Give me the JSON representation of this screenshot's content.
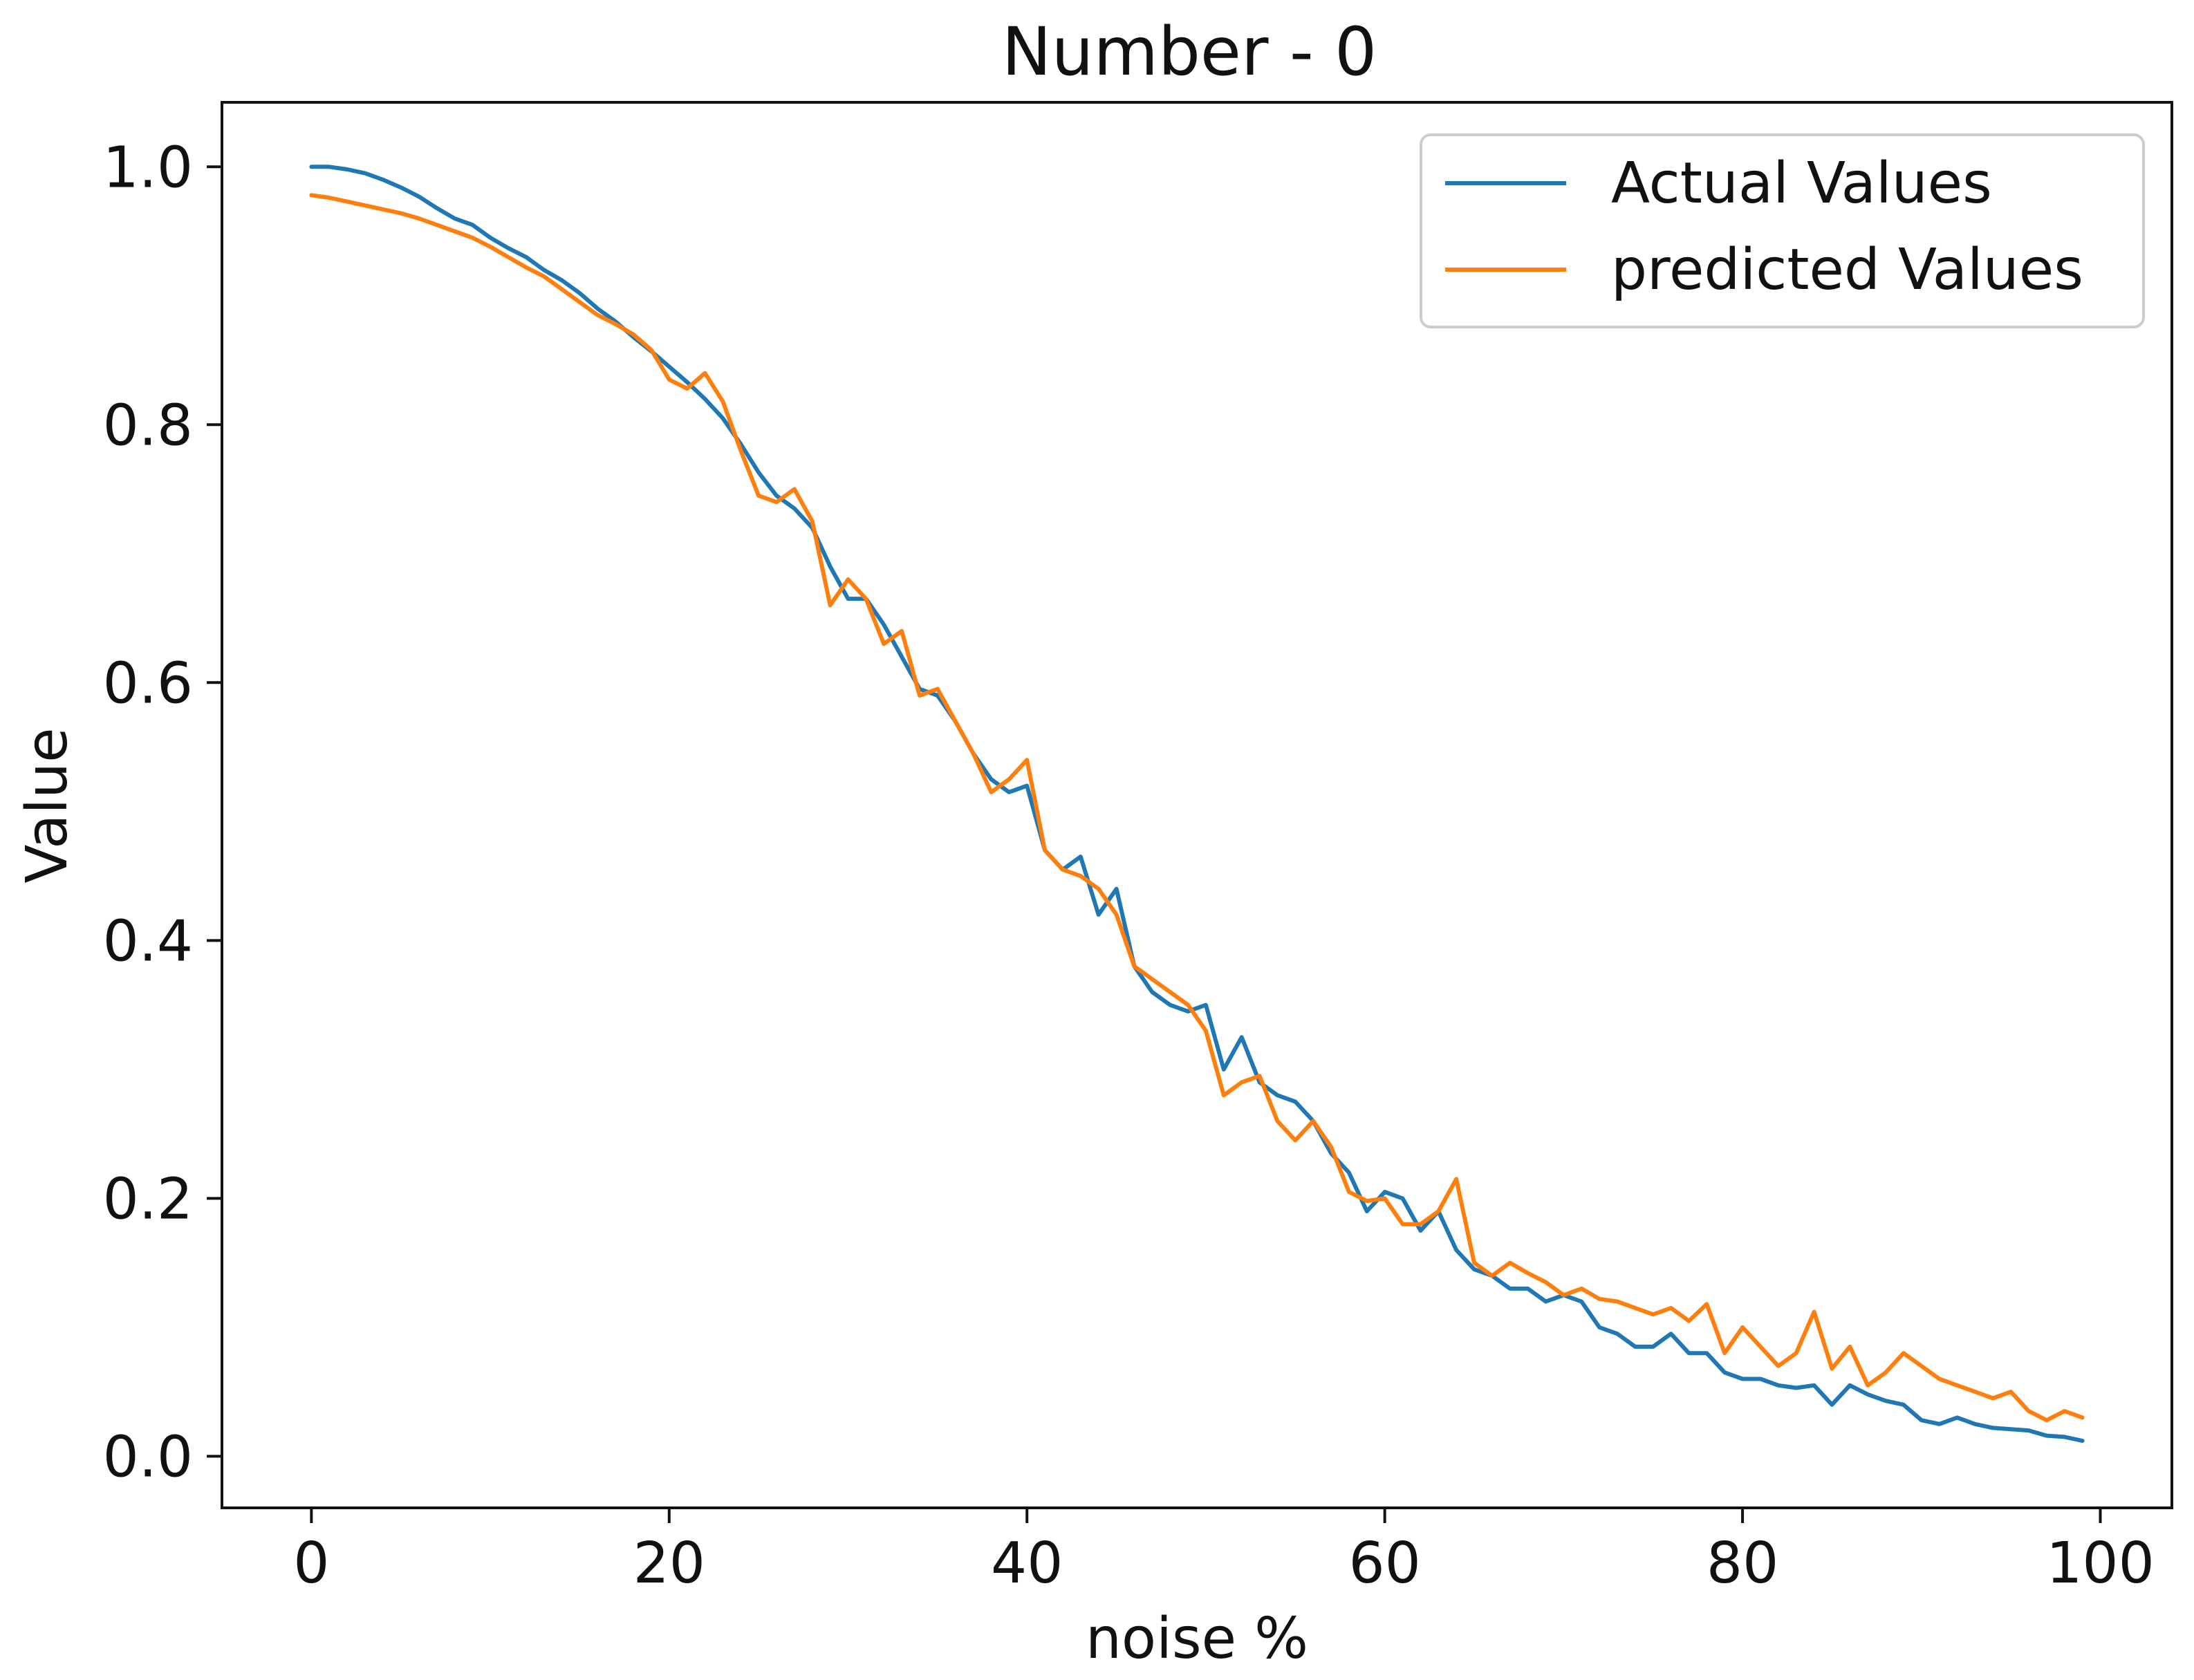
{
  "chart_data": {
    "type": "line",
    "title": "Number - 0",
    "xlabel": "noise %",
    "ylabel": "Value",
    "xlim": [
      -5,
      104
    ],
    "ylim": [
      -0.04,
      1.05
    ],
    "xticks": [
      0,
      20,
      40,
      60,
      80,
      100
    ],
    "xtick_labels": [
      "0",
      "20",
      "40",
      "60",
      "80",
      "100"
    ],
    "yticks": [
      0.0,
      0.2,
      0.4,
      0.6,
      0.8,
      1.0
    ],
    "ytick_labels": [
      "0.0",
      "0.2",
      "0.4",
      "0.6",
      "0.8",
      "1.0"
    ],
    "grid": false,
    "legend": {
      "position": "top-right"
    },
    "series": [
      {
        "name": "Actual Values",
        "color": "#1f77b4",
        "x": [
          0,
          1,
          2,
          3,
          4,
          5,
          6,
          7,
          8,
          9,
          10,
          11,
          12,
          13,
          14,
          15,
          16,
          17,
          18,
          19,
          20,
          21,
          22,
          23,
          24,
          25,
          26,
          27,
          28,
          29,
          30,
          31,
          32,
          33,
          34,
          35,
          36,
          37,
          38,
          39,
          40,
          41,
          42,
          43,
          44,
          45,
          46,
          47,
          48,
          49,
          50,
          51,
          52,
          53,
          54,
          55,
          56,
          57,
          58,
          59,
          60,
          61,
          62,
          63,
          64,
          65,
          66,
          67,
          68,
          69,
          70,
          71,
          72,
          73,
          74,
          75,
          76,
          77,
          78,
          79,
          80,
          81,
          82,
          83,
          84,
          85,
          86,
          87,
          88,
          89,
          90,
          91,
          92,
          93,
          94,
          95,
          96,
          97,
          98,
          99
        ],
        "values": [
          1.0,
          1.0,
          0.998,
          0.995,
          0.99,
          0.984,
          0.977,
          0.968,
          0.96,
          0.955,
          0.945,
          0.937,
          0.93,
          0.92,
          0.912,
          0.902,
          0.89,
          0.88,
          0.868,
          0.857,
          0.845,
          0.833,
          0.82,
          0.805,
          0.785,
          0.763,
          0.745,
          0.735,
          0.72,
          0.69,
          0.665,
          0.665,
          0.645,
          0.62,
          0.595,
          0.59,
          0.57,
          0.545,
          0.525,
          0.515,
          0.52,
          0.47,
          0.455,
          0.465,
          0.42,
          0.44,
          0.38,
          0.36,
          0.35,
          0.345,
          0.35,
          0.3,
          0.325,
          0.29,
          0.28,
          0.275,
          0.26,
          0.235,
          0.22,
          0.19,
          0.205,
          0.2,
          0.175,
          0.19,
          0.16,
          0.145,
          0.14,
          0.13,
          0.13,
          0.12,
          0.125,
          0.12,
          0.1,
          0.095,
          0.085,
          0.085,
          0.095,
          0.08,
          0.08,
          0.065,
          0.06,
          0.06,
          0.055,
          0.053,
          0.055,
          0.04,
          0.055,
          0.048,
          0.043,
          0.04,
          0.028,
          0.025,
          0.03,
          0.025,
          0.022,
          0.021,
          0.02,
          0.016,
          0.015,
          0.012
        ]
      },
      {
        "name": "predicted Values",
        "color": "#ff7f0e",
        "x": [
          0,
          1,
          2,
          3,
          4,
          5,
          6,
          7,
          8,
          9,
          10,
          11,
          12,
          13,
          14,
          15,
          16,
          17,
          18,
          19,
          20,
          21,
          22,
          23,
          24,
          25,
          26,
          27,
          28,
          29,
          30,
          31,
          32,
          33,
          34,
          35,
          36,
          37,
          38,
          39,
          40,
          41,
          42,
          43,
          44,
          45,
          46,
          47,
          48,
          49,
          50,
          51,
          52,
          53,
          54,
          55,
          56,
          57,
          58,
          59,
          60,
          61,
          62,
          63,
          64,
          65,
          66,
          67,
          68,
          69,
          70,
          71,
          72,
          73,
          74,
          75,
          76,
          77,
          78,
          79,
          80,
          81,
          82,
          83,
          84,
          85,
          86,
          87,
          88,
          89,
          90,
          91,
          92,
          93,
          94,
          95,
          96,
          97,
          98,
          99
        ],
        "values": [
          0.978,
          0.976,
          0.973,
          0.97,
          0.967,
          0.964,
          0.96,
          0.955,
          0.95,
          0.945,
          0.938,
          0.93,
          0.922,
          0.915,
          0.905,
          0.895,
          0.885,
          0.878,
          0.87,
          0.858,
          0.835,
          0.828,
          0.84,
          0.818,
          0.78,
          0.745,
          0.74,
          0.75,
          0.725,
          0.66,
          0.68,
          0.665,
          0.63,
          0.64,
          0.59,
          0.595,
          0.57,
          0.545,
          0.515,
          0.525,
          0.54,
          0.47,
          0.455,
          0.45,
          0.44,
          0.42,
          0.38,
          0.37,
          0.36,
          0.35,
          0.33,
          0.28,
          0.29,
          0.295,
          0.26,
          0.245,
          0.26,
          0.24,
          0.205,
          0.198,
          0.2,
          0.18,
          0.18,
          0.19,
          0.215,
          0.15,
          0.14,
          0.15,
          0.142,
          0.135,
          0.125,
          0.13,
          0.122,
          0.12,
          0.115,
          0.11,
          0.115,
          0.105,
          0.118,
          0.08,
          0.1,
          0.085,
          0.07,
          0.08,
          0.112,
          0.068,
          0.085,
          0.055,
          0.065,
          0.08,
          0.07,
          0.06,
          0.055,
          0.05,
          0.045,
          0.05,
          0.035,
          0.028,
          0.035,
          0.03
        ]
      }
    ]
  }
}
